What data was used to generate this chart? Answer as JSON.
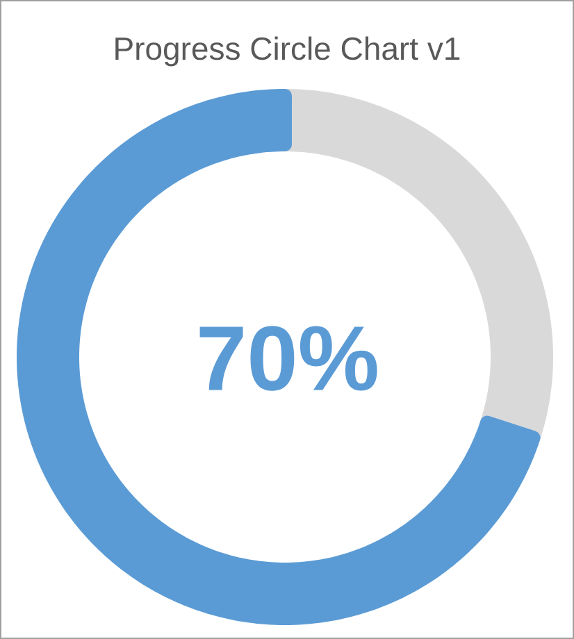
{
  "chart_data": {
    "type": "donut",
    "title": "Progress Circle Chart v1",
    "categories": [
      null,
      null
    ],
    "values": [
      30,
      70
    ],
    "colors": [
      "#d9d9d9",
      "#5b9bd5"
    ],
    "annotations": [
      "70%"
    ]
  }
}
